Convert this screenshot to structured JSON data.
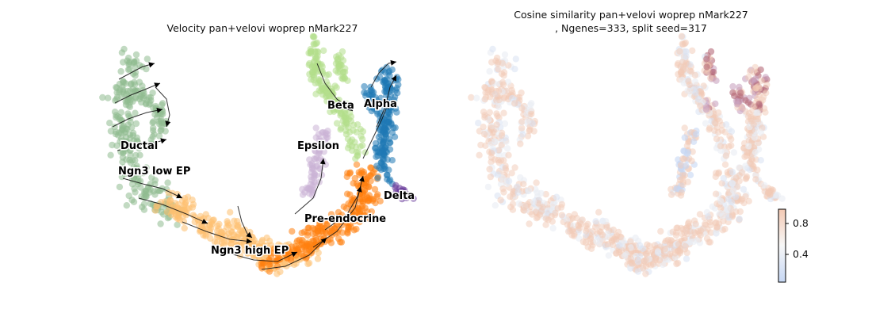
{
  "chart_data": [
    {
      "type": "scatter",
      "title": "Velocity pan+velovi woprep nMark227",
      "clusters": [
        {
          "name": "Ductal",
          "color": "#8fbc8f"
        },
        {
          "name": "Ngn3 low EP",
          "color": "#8fbc8f"
        },
        {
          "name": "Ngn3 high EP",
          "color": "#fdbf6f"
        },
        {
          "name": "Pre-endocrine",
          "color": "#ff7f0e"
        },
        {
          "name": "Beta",
          "color": "#b2df8a"
        },
        {
          "name": "Alpha",
          "color": "#1f78b4"
        },
        {
          "name": "Epsilon",
          "color": "#cab2d6"
        },
        {
          "name": "Delta",
          "color": "#6a3d9a"
        }
      ],
      "grid": false,
      "legend": "on data"
    },
    {
      "type": "scatter",
      "title": "Cosine similarity pan+velovi woprep nMark227",
      "subtitle": ", Ngenes=333, split seed=317",
      "colorbar": {
        "ticks": [
          "0.8",
          "0.4"
        ],
        "low_color": "#c6d7f4",
        "mid_color": "#f7f7f7",
        "high_color": "#c96a6a"
      }
    }
  ]
}
